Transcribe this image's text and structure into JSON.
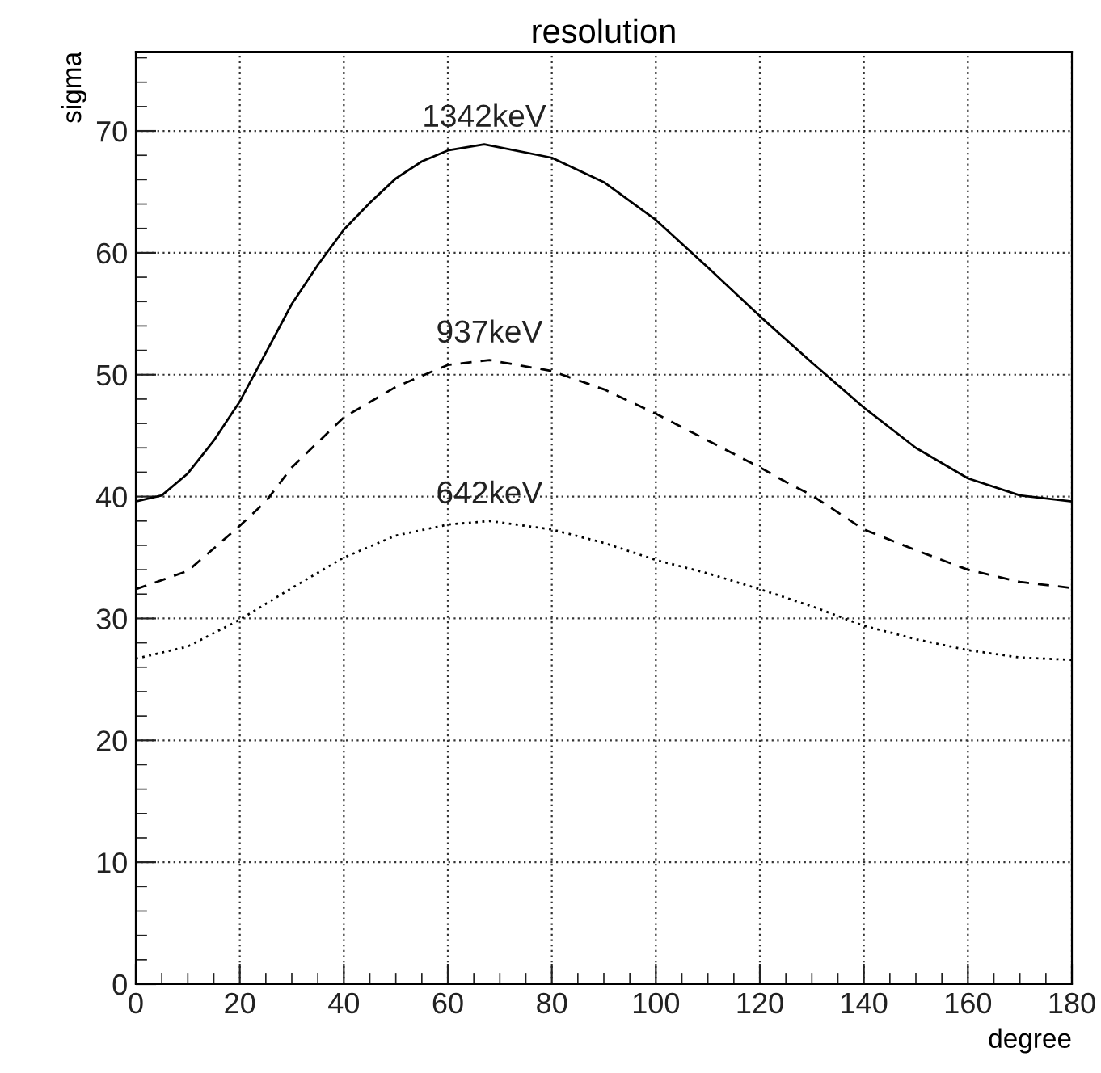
{
  "chart_data": {
    "type": "line",
    "title": "resolution",
    "xlabel": "degree",
    "ylabel": "sigma",
    "xlim": [
      0,
      180
    ],
    "xticks": [
      0,
      20,
      40,
      60,
      80,
      100,
      120,
      140,
      160,
      180
    ],
    "ylim": [
      0,
      76.5
    ],
    "yticks": [
      0,
      10,
      20,
      30,
      40,
      50,
      60,
      70
    ],
    "grid": true,
    "marker": "none",
    "series": [
      {
        "name": "1342keV",
        "color": "#000000",
        "line_style": "solid",
        "x": [
          0,
          5,
          10,
          15,
          20,
          25,
          30,
          35,
          40,
          45,
          50,
          55,
          60,
          67,
          80,
          90,
          100,
          110,
          120,
          130,
          140,
          150,
          160,
          170,
          180
        ],
        "values": [
          39.6,
          40.1,
          41.9,
          44.6,
          47.8,
          51.8,
          55.8,
          59.0,
          61.9,
          64.1,
          66.1,
          67.5,
          68.4,
          68.9,
          67.8,
          65.8,
          62.7,
          58.8,
          54.8,
          51.0,
          47.3,
          44.0,
          41.5,
          40.1,
          39.6
        ]
      },
      {
        "name": "937keV",
        "color": "#000000",
        "line_style": "dashed",
        "x": [
          0,
          10,
          20,
          25,
          30,
          40,
          50,
          60,
          68,
          80,
          90,
          100,
          110,
          120,
          125,
          130,
          140,
          150,
          160,
          170,
          180
        ],
        "values": [
          32.4,
          33.9,
          37.6,
          39.6,
          42.4,
          46.5,
          49.0,
          50.8,
          51.2,
          50.3,
          48.8,
          46.8,
          44.6,
          42.4,
          41.2,
          40.1,
          37.3,
          35.6,
          34.0,
          33.0,
          32.5
        ]
      },
      {
        "name": "642keV",
        "color": "#000000",
        "line_style": "dotted",
        "x": [
          0,
          10,
          20,
          30,
          40,
          50,
          60,
          68,
          80,
          90,
          100,
          110,
          120,
          130,
          140,
          150,
          160,
          170,
          180
        ],
        "values": [
          26.7,
          27.7,
          29.9,
          32.5,
          35.0,
          36.8,
          37.7,
          38.0,
          37.3,
          36.2,
          34.8,
          33.7,
          32.4,
          31.0,
          29.4,
          28.3,
          27.4,
          26.8,
          26.6
        ]
      }
    ]
  }
}
